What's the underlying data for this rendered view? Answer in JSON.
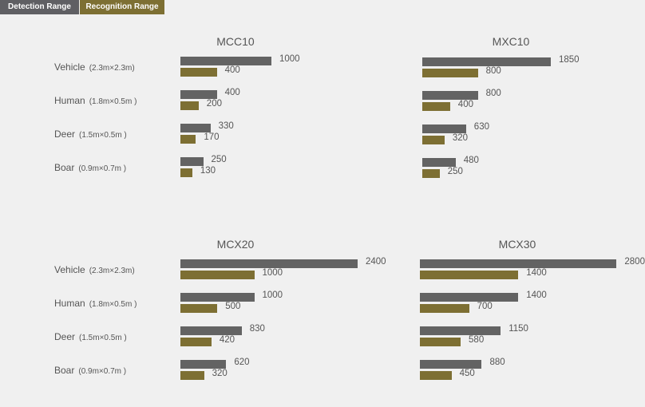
{
  "tabs": [
    {
      "label": "Detection Range"
    },
    {
      "label": "Recognition Range"
    }
  ],
  "colors": {
    "detection": "#636363",
    "recognition": "#7d6f33"
  },
  "chart_data": [
    {
      "type": "bar",
      "title": "MCC10",
      "categories": [
        "Vehicle",
        "Human",
        "Deer",
        "Boar"
      ],
      "category_sizes": [
        "(2.3m×2.3m)",
        "(1.8m×0.5m )",
        "(1.5m×0.5m )",
        "(0.9m×0.7m )"
      ],
      "series": [
        {
          "name": "Detection Range",
          "values": [
            1000,
            400,
            330,
            250
          ]
        },
        {
          "name": "Recognition Range",
          "values": [
            400,
            200,
            170,
            130
          ]
        }
      ]
    },
    {
      "type": "bar",
      "title": "MXC10",
      "categories": [
        "Vehicle",
        "Human",
        "Deer",
        "Boar"
      ],
      "series": [
        {
          "name": "Detection Range",
          "values": [
            1850,
            800,
            630,
            480
          ]
        },
        {
          "name": "Recognition Range",
          "values": [
            800,
            400,
            320,
            250
          ]
        }
      ]
    },
    {
      "type": "bar",
      "title": "MCX20",
      "categories": [
        "Vehicle",
        "Human",
        "Deer",
        "Boar"
      ],
      "category_sizes": [
        "(2.3m×2.3m)",
        "(1.8m×0.5m )",
        "(1.5m×0.5m )",
        "(0.9m×0.7m )"
      ],
      "series": [
        {
          "name": "Detection Range",
          "values": [
            2400,
            1000,
            830,
            620
          ]
        },
        {
          "name": "Recognition Range",
          "values": [
            1000,
            500,
            420,
            320
          ]
        }
      ]
    },
    {
      "type": "bar",
      "title": "MCX30",
      "categories": [
        "Vehicle",
        "Human",
        "Deer",
        "Boar"
      ],
      "series": [
        {
          "name": "Detection Range",
          "values": [
            2800,
            1400,
            1150,
            880
          ]
        },
        {
          "name": "Recognition Range",
          "values": [
            1400,
            700,
            580,
            450
          ]
        }
      ]
    }
  ]
}
